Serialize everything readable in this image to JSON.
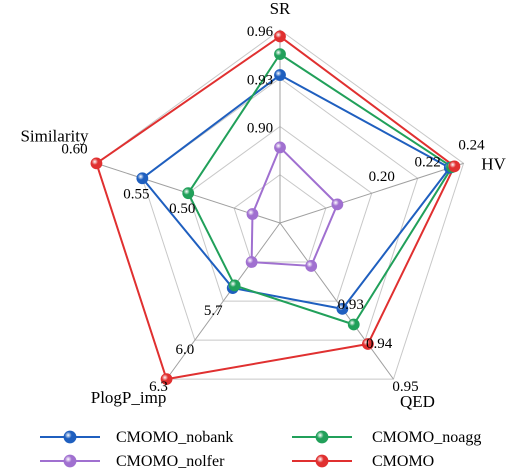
{
  "chart_data": {
    "type": "radar",
    "axes": [
      {
        "name": "SR",
        "ticks": [
          "0.90",
          "0.93",
          "0.96"
        ]
      },
      {
        "name": "HV",
        "ticks": [
          "0.20",
          "0.22",
          "0.24"
        ]
      },
      {
        "name": "QED",
        "ticks": [
          "0.93",
          "0.94",
          "0.95"
        ]
      },
      {
        "name": "PlogP_imp",
        "ticks": [
          "5.7",
          "6.0",
          "6.3"
        ]
      },
      {
        "name": "Similarity",
        "ticks": [
          "0.50",
          "0.55",
          "0.60"
        ]
      }
    ],
    "series": [
      {
        "name": "CMOMO_nobank",
        "color": "#1f5fbf",
        "values": [
          0.932,
          0.234,
          0.932,
          5.6,
          0.55
        ]
      },
      {
        "name": "CMOMO_noagg",
        "color": "#21a05a",
        "values": [
          0.945,
          0.235,
          0.936,
          5.58,
          0.5
        ]
      },
      {
        "name": "CMOMO_nolfer",
        "color": "#a070d0",
        "values": [
          0.887,
          0.185,
          0.921,
          5.4,
          0.43
        ]
      },
      {
        "name": "CMOMO",
        "color": "#e03030",
        "values": [
          0.956,
          0.236,
          0.941,
          6.3,
          0.6
        ]
      }
    ],
    "legend": {
      "position": "bottom",
      "columns": 2
    },
    "grid": true
  }
}
